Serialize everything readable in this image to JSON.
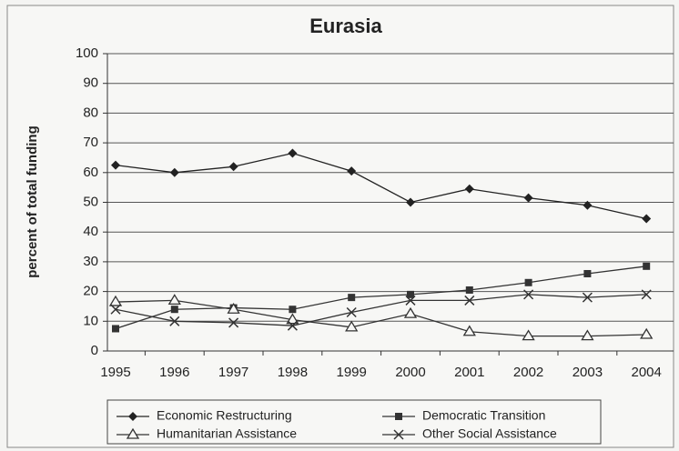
{
  "chart_data": {
    "type": "line",
    "title": "Eurasia",
    "y_label": "percent of total funding",
    "categories": [
      "1995",
      "1996",
      "1997",
      "1998",
      "1999",
      "2000",
      "2001",
      "2002",
      "2003",
      "2004"
    ],
    "series": [
      {
        "name": "Economic Restructuring",
        "color": "#222222",
        "marker": "diamond",
        "values": [
          62.5,
          60,
          62,
          66.5,
          60.5,
          50,
          54.5,
          51.5,
          49,
          44.5
        ]
      },
      {
        "name": "Democratic Transition",
        "color": "#333333",
        "marker": "square",
        "values": [
          7.5,
          14,
          14.5,
          14,
          18,
          19,
          20.5,
          23,
          26,
          28.5
        ]
      },
      {
        "name": "Humanitarian Assistance",
        "color": "#333333",
        "marker": "triangle",
        "values": [
          16.5,
          17,
          14,
          10.5,
          8,
          12.5,
          6.5,
          5,
          5,
          5.5
        ]
      },
      {
        "name": "Other Social Assistance",
        "color": "#333333",
        "marker": "x",
        "values": [
          14,
          10,
          9.5,
          8.5,
          13,
          17,
          17,
          19,
          18,
          19
        ]
      }
    ],
    "ylim": [
      0,
      100
    ],
    "yticks": [
      0,
      10,
      20,
      30,
      40,
      50,
      60,
      70,
      80,
      90,
      100
    ],
    "grid": true,
    "legend": "bottom"
  }
}
